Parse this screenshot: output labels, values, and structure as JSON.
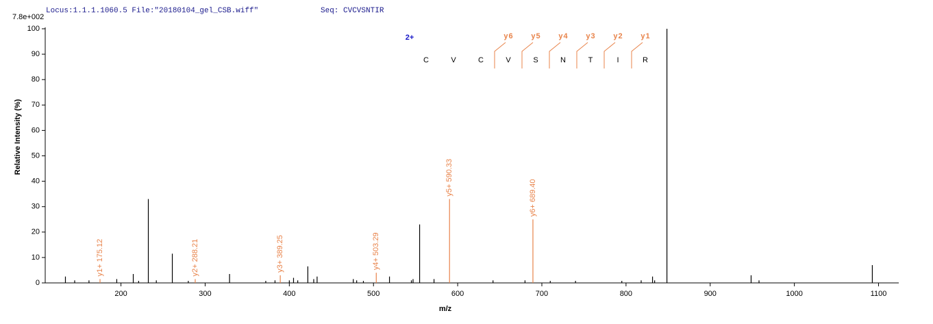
{
  "chart_data": {
    "type": "spectrum",
    "header": {
      "locus": "Locus:1.1.1.1060.5 File:\"20180104_gel_CSB.wiff\"",
      "seq": "Seq: CVCVSNTIR"
    },
    "scale_label": "7.8e+002",
    "xlabel": "m/z",
    "ylabel": "Relative   Intensity (%)",
    "xlim": [
      110,
      1124
    ],
    "ylim": [
      0,
      100
    ],
    "xticks": [
      200,
      300,
      400,
      500,
      600,
      700,
      800,
      900,
      1000,
      1100
    ],
    "yticks": [
      0,
      10,
      20,
      30,
      40,
      50,
      60,
      70,
      80,
      90,
      100
    ],
    "charge": "2+",
    "sequence": [
      "C",
      "V",
      "C",
      "V",
      "S",
      "N",
      "T",
      "I",
      "R"
    ],
    "ion_labels": [
      {
        "base": "y",
        "sub": "6"
      },
      {
        "base": "y",
        "sub": "5"
      },
      {
        "base": "y",
        "sub": "4"
      },
      {
        "base": "y",
        "sub": "3"
      },
      {
        "base": "y",
        "sub": "2"
      },
      {
        "base": "y",
        "sub": "1"
      }
    ],
    "series": [
      {
        "name": "peaks",
        "color": "#000000",
        "x": [
          134,
          145,
          162,
          195,
          214.6,
          221,
          232.5,
          242,
          261,
          280,
          329,
          372,
          383,
          400,
          405,
          410,
          422,
          429,
          433,
          476,
          480,
          488,
          519,
          545,
          547,
          554.8,
          571.9,
          642,
          680,
          710,
          740,
          795,
          818,
          831.5,
          834,
          848.6,
          948.6,
          958,
          1092.6
        ],
        "values": [
          2.5,
          1,
          1,
          1.5,
          3.5,
          0.8,
          33,
          1,
          11.5,
          0.8,
          3.5,
          0.8,
          1,
          1,
          2,
          1,
          6.5,
          1.5,
          2.5,
          1.5,
          1,
          0.8,
          2.5,
          1,
          1.5,
          23,
          1.5,
          1,
          1,
          0.8,
          0.8,
          0.8,
          1,
          2.5,
          1,
          100,
          3,
          1,
          7
        ]
      },
      {
        "name": "ions",
        "color": "#e8834a",
        "x": [
          175.12,
          288.21,
          389.25,
          503.29,
          590.33,
          689.4
        ],
        "values": [
          1.5,
          1.5,
          3,
          4,
          33,
          25
        ],
        "annotations": [
          "y1+ 175.12",
          "y2+ 288.21",
          "y3+ 389.25",
          "y4+ 503.29",
          "y5+ 590.33",
          "y6+ 689.40"
        ]
      }
    ]
  }
}
